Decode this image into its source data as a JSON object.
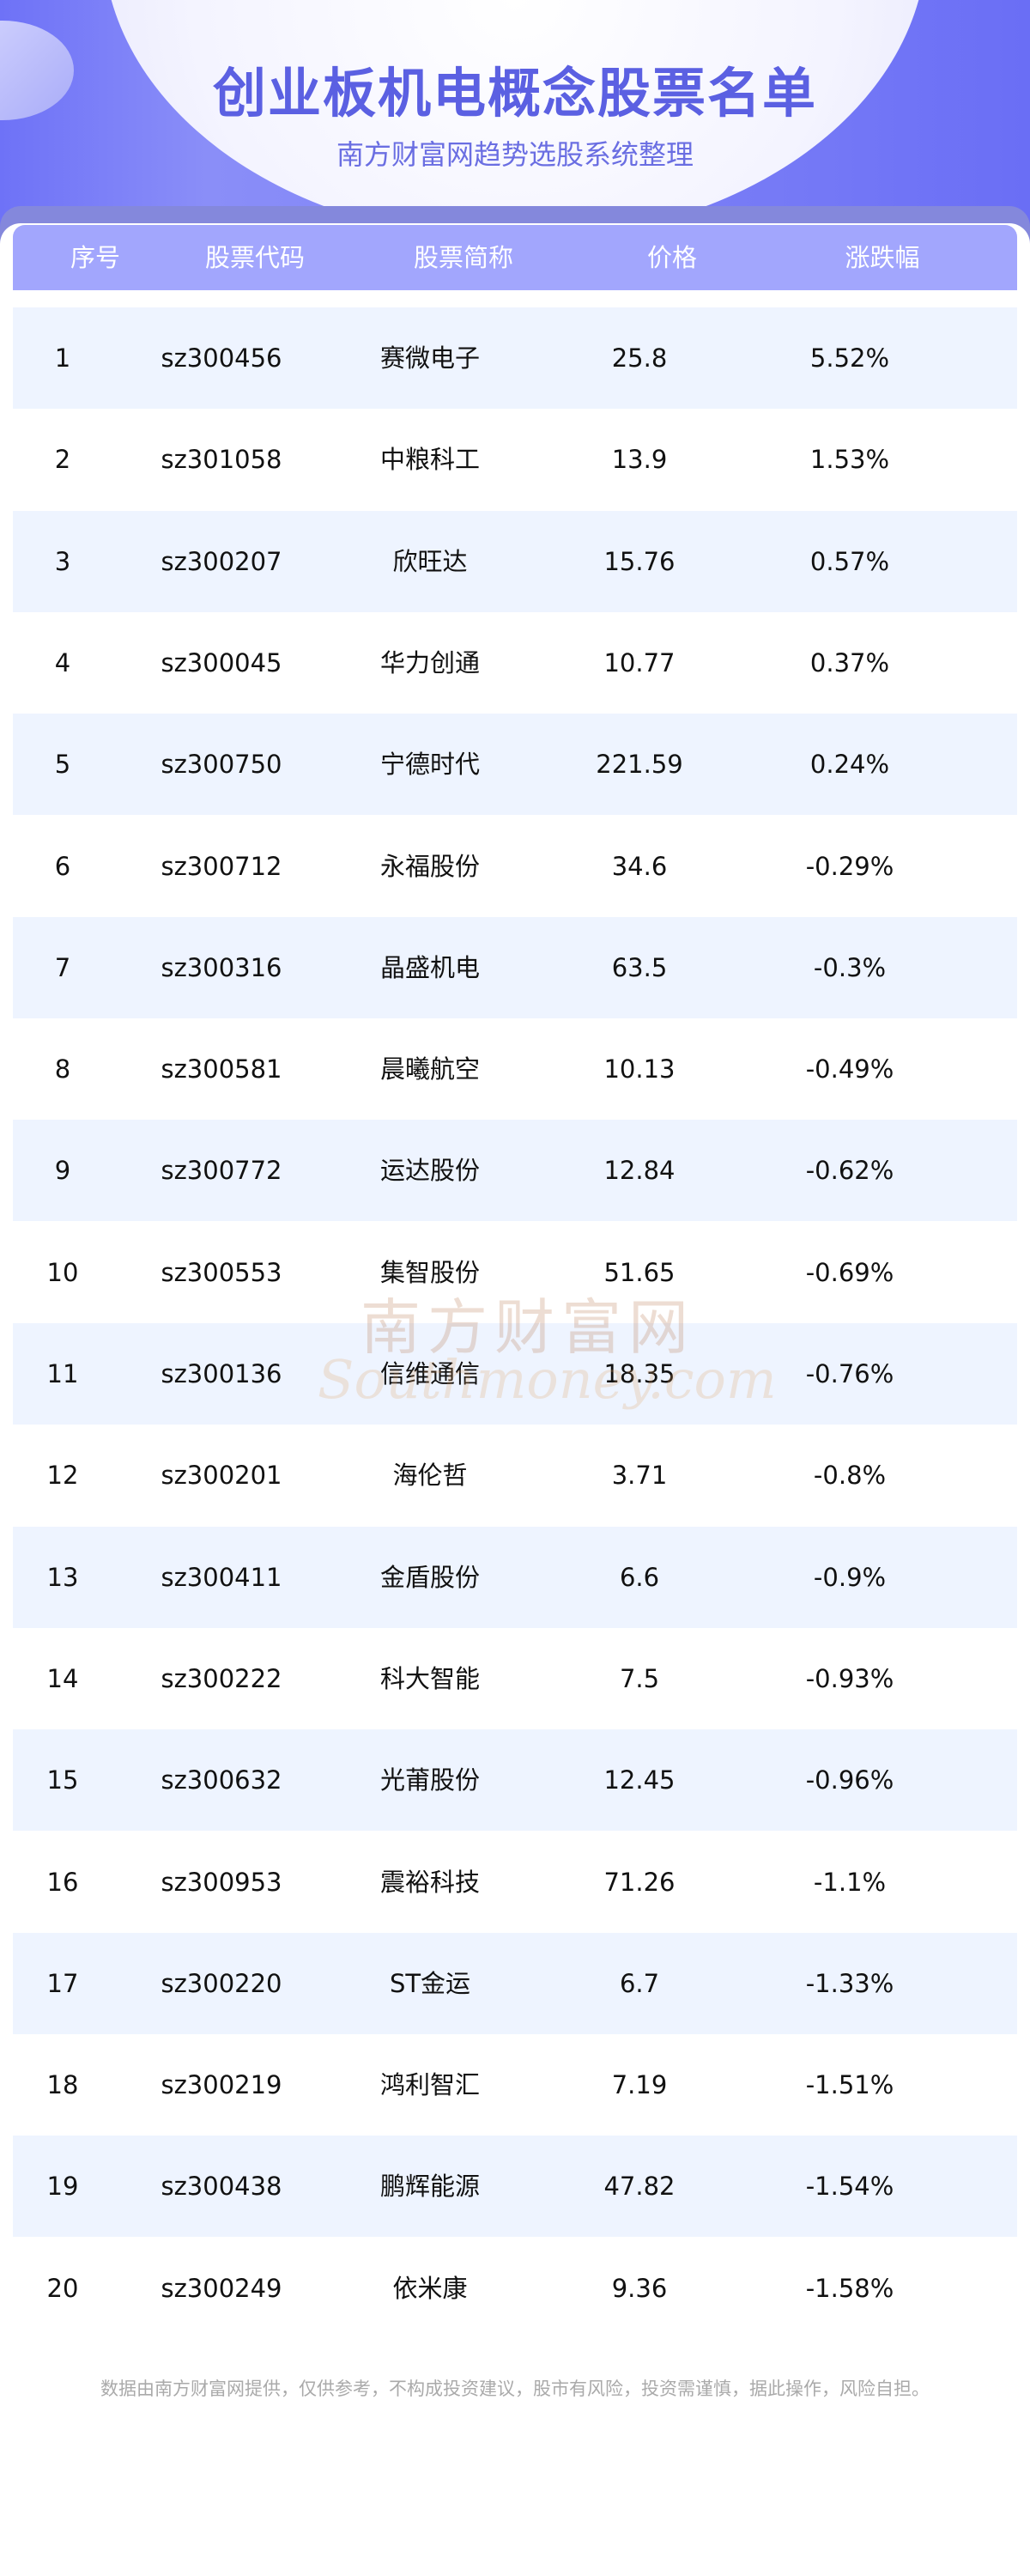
{
  "header": {
    "title": "创业板机电概念股票名单",
    "subtitle": "南方财富网趋势选股系统整理"
  },
  "colors": {
    "accent": "#5b60e2",
    "table_header": "#a2a6fd",
    "row_alt": "#eef4ff"
  },
  "table": {
    "columns": [
      "序号",
      "股票代码",
      "股票简称",
      "价格",
      "涨跌幅"
    ],
    "rows": [
      [
        "1",
        "sz300456",
        "赛微电子",
        "25.8",
        "5.52%"
      ],
      [
        "2",
        "sz301058",
        "中粮科工",
        "13.9",
        "1.53%"
      ],
      [
        "3",
        "sz300207",
        "欣旺达",
        "15.76",
        "0.57%"
      ],
      [
        "4",
        "sz300045",
        "华力创通",
        "10.77",
        "0.37%"
      ],
      [
        "5",
        "sz300750",
        "宁德时代",
        "221.59",
        "0.24%"
      ],
      [
        "6",
        "sz300712",
        "永福股份",
        "34.6",
        "-0.29%"
      ],
      [
        "7",
        "sz300316",
        "晶盛机电",
        "63.5",
        "-0.3%"
      ],
      [
        "8",
        "sz300581",
        "晨曦航空",
        "10.13",
        "-0.49%"
      ],
      [
        "9",
        "sz300772",
        "运达股份",
        "12.84",
        "-0.62%"
      ],
      [
        "10",
        "sz300553",
        "集智股份",
        "51.65",
        "-0.69%"
      ],
      [
        "11",
        "sz300136",
        "信维通信",
        "18.35",
        "-0.76%"
      ],
      [
        "12",
        "sz300201",
        "海伦哲",
        "3.71",
        "-0.8%"
      ],
      [
        "13",
        "sz300411",
        "金盾股份",
        "6.6",
        "-0.9%"
      ],
      [
        "14",
        "sz300222",
        "科大智能",
        "7.5",
        "-0.93%"
      ],
      [
        "15",
        "sz300632",
        "光莆股份",
        "12.45",
        "-0.96%"
      ],
      [
        "16",
        "sz300953",
        "震裕科技",
        "71.26",
        "-1.1%"
      ],
      [
        "17",
        "sz300220",
        "ST金运",
        "6.7",
        "-1.33%"
      ],
      [
        "18",
        "sz300219",
        "鸿利智汇",
        "7.19",
        "-1.51%"
      ],
      [
        "19",
        "sz300438",
        "鹏辉能源",
        "47.82",
        "-1.54%"
      ],
      [
        "20",
        "sz300249",
        "依米康",
        "9.36",
        "-1.58%"
      ]
    ]
  },
  "watermark": {
    "cn": "南方财富网",
    "en": "Southmoney.com"
  },
  "footer": "数据由南方财富网提供，仅供参考，不构成投资建议，股市有风险，投资需谨慎，据此操作，风险自担。"
}
